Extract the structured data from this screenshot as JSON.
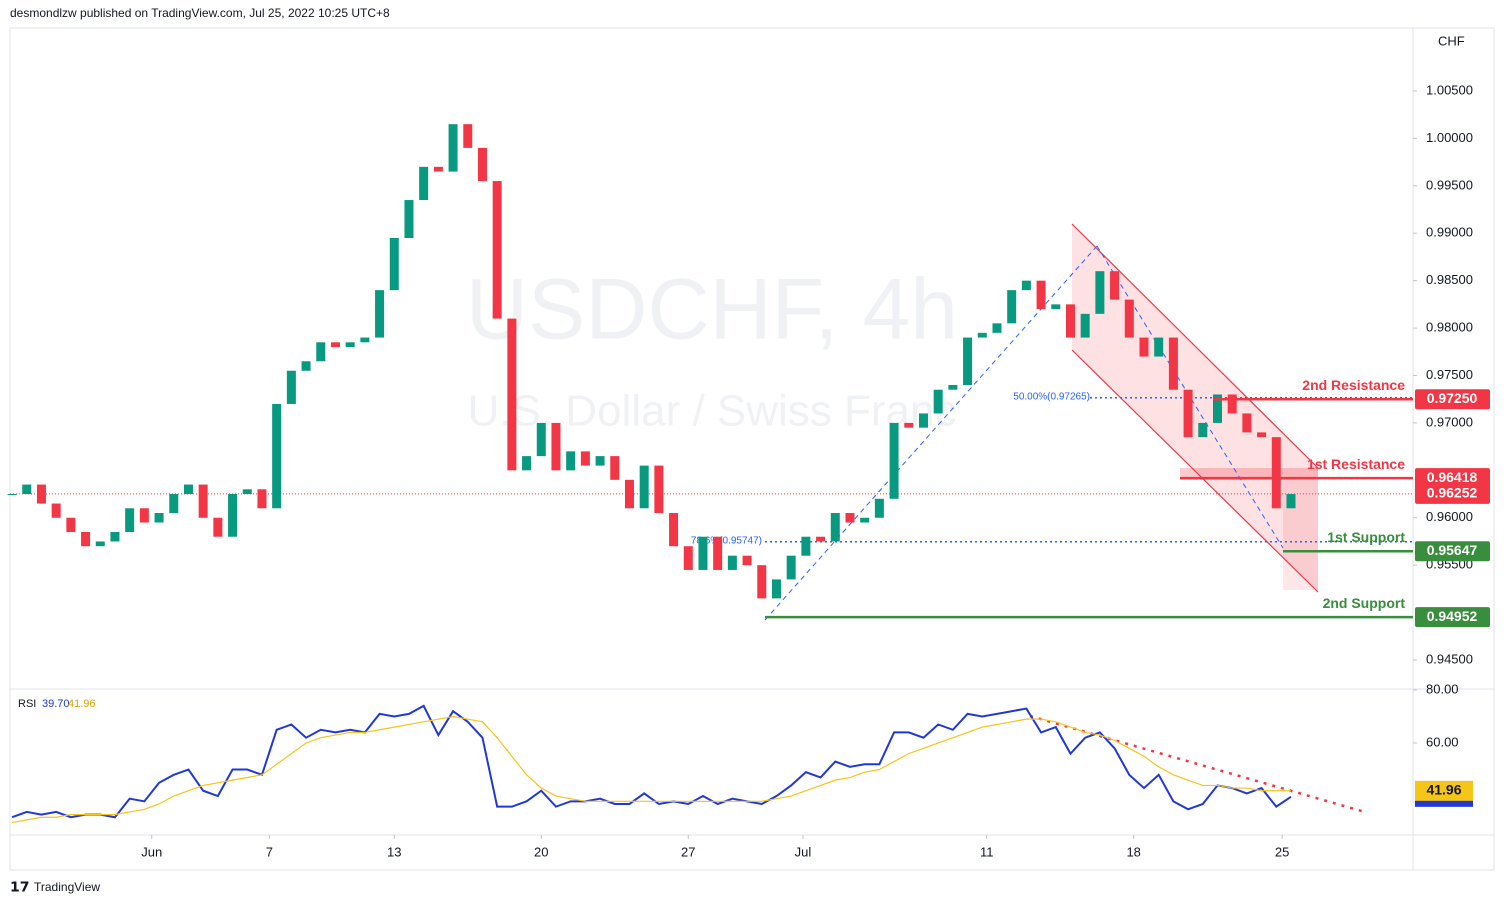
{
  "header": "desmondlzw published on TradingView.com, Jul 25, 2022 10:25 UTC+8",
  "footer": "TradingView",
  "currency": "CHF",
  "watermark": [
    "USDCHF, 4h",
    "U.S. Dollar / Swiss Franc"
  ],
  "chart_data": [
    {
      "type": "candlestick",
      "series": [
        {
          "color": "#089981",
          "down_color": "#f23645",
          "values": [
            0.9625,
            0.9635,
            0.9615,
            0.96,
            0.9585,
            0.957,
            0.9575,
            0.9585,
            0.961,
            0.9595,
            0.9605,
            0.9625,
            0.9635,
            0.96,
            0.958,
            0.9625,
            0.963,
            0.961,
            0.972,
            0.9755,
            0.9765,
            0.9785,
            0.978,
            0.9785,
            0.979,
            0.984,
            0.9895,
            0.9935,
            0.997,
            0.9965,
            1.0015,
            0.999,
            0.9955,
            0.981,
            0.965,
            0.9665,
            0.97,
            0.965,
            0.967,
            0.9655,
            0.9665,
            0.964,
            0.961,
            0.9655,
            0.9605,
            0.957,
            0.9545,
            0.958,
            0.9545,
            0.956,
            0.955,
            0.9515,
            0.9535,
            0.956,
            0.958,
            0.9575,
            0.9605,
            0.9595,
            0.96,
            0.962,
            0.97,
            0.9695,
            0.971,
            0.9735,
            0.974,
            0.979,
            0.9795,
            0.9805,
            0.984,
            0.985,
            0.982,
            0.9825,
            0.979,
            0.9815,
            0.986,
            0.983,
            0.979,
            0.977,
            0.979,
            0.9735,
            0.9685,
            0.97,
            0.973,
            0.971,
            0.969,
            0.9685,
            0.961,
            0.9625
          ]
        }
      ],
      "xlim": [
        -0.14,
        95.3
      ],
      "xticks": [
        {
          "value": 9.5,
          "label": "Jun"
        },
        {
          "value": 17.5,
          "label": "7"
        },
        {
          "value": 26,
          "label": "13"
        },
        {
          "value": 36,
          "label": "20"
        },
        {
          "value": 46,
          "label": "27"
        },
        {
          "value": 53.8,
          "label": "Jul"
        },
        {
          "value": 66.3,
          "label": "11"
        },
        {
          "value": 76.3,
          "label": "18"
        },
        {
          "value": 86.4,
          "label": "25"
        }
      ],
      "ylim": [
        0.94205,
        1.01164
      ],
      "yticks": [
        {
          "value": 1.005,
          "label": "1.00500"
        },
        {
          "value": 1.0,
          "label": "1.00000"
        },
        {
          "value": 0.995,
          "label": "0.99500"
        },
        {
          "value": 0.99,
          "label": "0.99000"
        },
        {
          "value": 0.985,
          "label": "0.98500"
        },
        {
          "value": 0.98,
          "label": "0.98000"
        },
        {
          "value": 0.975,
          "label": "0.97500"
        },
        {
          "value": 0.97,
          "label": "0.97000"
        },
        {
          "value": 0.96,
          "label": "0.96000"
        },
        {
          "value": 0.955,
          "label": "0.95500"
        },
        {
          "value": 0.945,
          "label": "0.94500"
        }
      ],
      "levels": [
        {
          "name": "2nd Resistance",
          "value": 0.9725,
          "label": "0.97250",
          "color": "#f23645"
        },
        {
          "name": "1st Resistance",
          "value": 0.96418,
          "label": "0.96418",
          "color": "#f23645"
        },
        {
          "name": "1st Support",
          "value": 0.95647,
          "label": "0.95647",
          "color": "#388e3c"
        },
        {
          "name": "2nd Support",
          "value": 0.94952,
          "label": "0.94952",
          "color": "#388e3c"
        }
      ],
      "last_price": {
        "value": 0.96252,
        "label": "0.96252",
        "color": "#f23645"
      },
      "fib_levels": [
        {
          "value": 0.97265,
          "label": "50.00%(0.97265)"
        },
        {
          "value": 0.95747,
          "label": "78.6%(0.95747)"
        }
      ]
    },
    {
      "type": "line",
      "series": [
        {
          "name": "RSI",
          "color": "#2138d6",
          "values": [
            32,
            34,
            33,
            34,
            32,
            33,
            33,
            32,
            39,
            38,
            45,
            48,
            50,
            42,
            40,
            50,
            50,
            48,
            65,
            67,
            62,
            65,
            64,
            65,
            64,
            71,
            70,
            71,
            74,
            63,
            72,
            68,
            62,
            36,
            36,
            38,
            42,
            36,
            38,
            38,
            39,
            37,
            37,
            41,
            37,
            38,
            37,
            40,
            37,
            39,
            38,
            37,
            40,
            44,
            49,
            47,
            53,
            51,
            52,
            52,
            64,
            64,
            62,
            67,
            65,
            71,
            70,
            71,
            72,
            73,
            64,
            66,
            56,
            62,
            64,
            58,
            48,
            43,
            48,
            38,
            35,
            37,
            44,
            43,
            41,
            43,
            36,
            39.7
          ]
        },
        {
          "color": "#f5c518",
          "values": [
            30,
            31,
            32,
            32,
            33,
            33,
            33,
            33,
            34,
            35,
            37,
            40,
            42,
            44,
            45,
            46,
            47,
            48,
            52,
            56,
            60,
            62,
            63,
            64,
            64,
            65,
            66,
            67,
            68,
            69,
            70,
            69,
            68,
            62,
            55,
            48,
            43,
            40,
            39,
            38,
            38,
            38,
            38,
            38,
            38,
            38,
            38,
            38,
            38,
            38,
            38,
            38,
            39,
            40,
            42,
            44,
            46,
            47,
            49,
            50,
            53,
            56,
            58,
            60,
            62,
            64,
            66,
            67,
            68,
            69,
            69,
            68,
            66,
            64,
            63,
            61,
            58,
            55,
            51,
            48,
            46,
            44,
            44,
            43,
            43,
            42,
            42,
            41.96
          ]
        }
      ],
      "readouts": [
        {
          "value": 39.7,
          "label": "39.70"
        },
        {
          "value": 41.96,
          "label": "41.96"
        }
      ],
      "ylim": [
        25.3,
        80
      ],
      "yticks": [
        {
          "value": 80,
          "label": "80.00"
        },
        {
          "value": 60,
          "label": "60.00"
        }
      ]
    }
  ]
}
